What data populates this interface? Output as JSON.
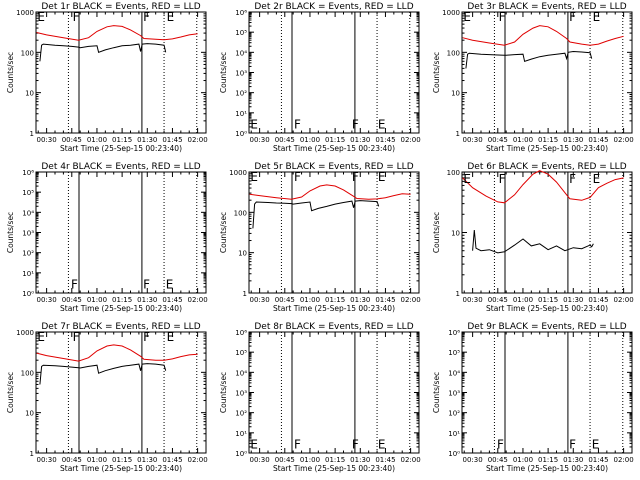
{
  "figure": {
    "xlabel": "Start Time (25-Sep-15 00:23:40)",
    "ylabel": "Counts/sec",
    "red_color": "#e00000",
    "black_color": "#000000",
    "x_ticks": [
      "00:30",
      "00:45",
      "01:00",
      "01:15",
      "01:30",
      "01:45",
      "02:00"
    ],
    "x_tick_minutes": [
      30,
      45,
      60,
      75,
      90,
      105,
      120
    ],
    "x_range_minutes": [
      23.67,
      125
    ],
    "solid_lines_minutes": [
      49.3,
      86.8
    ],
    "dotted_lines_minutes": [
      43,
      100,
      119.5
    ]
  },
  "chart_data": [
    {
      "type": "line",
      "title": "Det 1r BLACK = Events, RED = LLD",
      "ylog": true,
      "ylim": [
        1,
        1000
      ],
      "y_ticks": [
        "1",
        "10",
        "100",
        "1000"
      ],
      "markers": [
        {
          "text": "E",
          "x": 24.5,
          "y": 800
        },
        {
          "text": "F",
          "x": 45.5,
          "y": 800
        },
        {
          "text": "F",
          "x": 87.5,
          "y": 800
        },
        {
          "text": "E",
          "x": 101.5,
          "y": 800
        }
      ],
      "series": [
        {
          "color": "#e00000",
          "x": [
            24,
            30,
            40,
            49,
            55,
            60,
            66,
            70,
            75,
            80,
            86,
            88,
            95,
            100,
            105,
            110,
            115,
            120
          ],
          "y": [
            310,
            270,
            230,
            200,
            230,
            330,
            430,
            460,
            440,
            360,
            260,
            220,
            210,
            205,
            215,
            240,
            270,
            290
          ]
        },
        {
          "color": "#000000",
          "x": [
            26,
            27,
            28,
            35,
            40,
            45,
            49,
            50,
            55,
            60,
            61,
            65,
            70,
            75,
            80,
            85,
            86,
            87,
            90,
            95,
            100,
            101
          ],
          "y": [
            60,
            150,
            160,
            150,
            145,
            140,
            135,
            130,
            140,
            145,
            100,
            115,
            130,
            145,
            150,
            160,
            105,
            160,
            165,
            160,
            150,
            100
          ]
        }
      ]
    },
    {
      "type": "line",
      "title": "Det 2r BLACK = Events, RED = LLD",
      "ylog": true,
      "ylim": [
        1,
        1000000
      ],
      "y_ticks": [
        "10⁰",
        "10¹",
        "10²",
        "10³",
        "10⁴",
        "10⁵",
        "10⁶"
      ],
      "markers": [
        {
          "text": "E",
          "x": 24.5,
          "y": 3
        },
        {
          "text": "F",
          "x": 50.5,
          "y": 3
        },
        {
          "text": "F",
          "x": 85,
          "y": 3
        },
        {
          "text": "E",
          "x": 100.5,
          "y": 3
        }
      ],
      "series": []
    },
    {
      "type": "line",
      "title": "Det 3r BLACK = Events, RED = LLD",
      "ylog": true,
      "ylim": [
        1,
        1000
      ],
      "y_ticks": [
        "1",
        "10",
        "100",
        "1000"
      ],
      "markers": [
        {
          "text": "E",
          "x": 24.5,
          "y": 800
        },
        {
          "text": "F",
          "x": 45.5,
          "y": 800
        },
        {
          "text": "F",
          "x": 87.5,
          "y": 800
        },
        {
          "text": "E",
          "x": 101.5,
          "y": 800
        }
      ],
      "series": [
        {
          "color": "#e00000",
          "x": [
            24,
            30,
            40,
            49,
            55,
            60,
            66,
            70,
            75,
            80,
            86,
            88,
            95,
            100,
            105,
            110,
            115,
            120
          ],
          "y": [
            230,
            200,
            170,
            150,
            180,
            280,
            400,
            460,
            430,
            330,
            220,
            180,
            160,
            150,
            160,
            190,
            220,
            250
          ]
        },
        {
          "color": "#000000",
          "x": [
            26,
            27,
            28,
            35,
            40,
            45,
            49,
            50,
            55,
            60,
            61,
            65,
            70,
            75,
            80,
            85,
            86,
            87,
            90,
            95,
            100,
            101
          ],
          "y": [
            40,
            90,
            95,
            90,
            88,
            86,
            85,
            85,
            88,
            90,
            60,
            68,
            78,
            85,
            90,
            95,
            70,
            100,
            105,
            102,
            98,
            70
          ]
        }
      ]
    },
    {
      "type": "line",
      "title": "Det 4r BLACK = Events, RED = LLD",
      "ylog": true,
      "ylim": [
        1,
        1000000
      ],
      "y_ticks": [
        "10⁰",
        "10¹",
        "10²",
        "10³",
        "10⁴",
        "10⁵",
        "10⁶"
      ],
      "markers": [
        {
          "text": "F",
          "x": 44.5,
          "y": 3
        },
        {
          "text": "F",
          "x": 87.5,
          "y": 3
        },
        {
          "text": "E",
          "x": 101,
          "y": 3
        }
      ],
      "series": []
    },
    {
      "type": "line",
      "title": "Det 5r BLACK = Events, RED = LLD",
      "ylog": true,
      "ylim": [
        1,
        1000
      ],
      "y_ticks": [
        "1",
        "10",
        "100",
        "1000"
      ],
      "markers": [
        {
          "text": "E",
          "x": 24.5,
          "y": 800
        },
        {
          "text": "F",
          "x": 50.5,
          "y": 800
        },
        {
          "text": "F",
          "x": 85,
          "y": 800
        },
        {
          "text": "E",
          "x": 100.5,
          "y": 800
        }
      ],
      "series": [
        {
          "color": "#e00000",
          "x": [
            24,
            30,
            40,
            49,
            55,
            60,
            66,
            70,
            75,
            80,
            86,
            88,
            95,
            100,
            105,
            110,
            115,
            120
          ],
          "y": [
            280,
            260,
            230,
            210,
            240,
            340,
            450,
            480,
            450,
            360,
            250,
            220,
            210,
            215,
            230,
            260,
            290,
            280
          ]
        },
        {
          "color": "#000000",
          "x": [
            26,
            27,
            28,
            35,
            40,
            45,
            49,
            50,
            55,
            60,
            61,
            65,
            70,
            75,
            80,
            85,
            86,
            87,
            90,
            95,
            100,
            101
          ],
          "y": [
            40,
            160,
            180,
            175,
            170,
            168,
            165,
            160,
            170,
            180,
            110,
            125,
            140,
            160,
            175,
            190,
            130,
            190,
            195,
            190,
            185,
            140
          ]
        }
      ]
    },
    {
      "type": "line",
      "title": "Det 6r BLACK = Events, RED = LLD",
      "ylog": true,
      "ylim": [
        1,
        100
      ],
      "y_ticks": [
        "1",
        "10",
        "100"
      ],
      "markers": [
        {
          "text": "E",
          "x": 24.5,
          "y": 80
        },
        {
          "text": "F",
          "x": 45.5,
          "y": 80
        },
        {
          "text": "F",
          "x": 87.5,
          "y": 80
        },
        {
          "text": "E",
          "x": 101.5,
          "y": 80
        }
      ],
      "series": [
        {
          "color": "#e00000",
          "x": [
            24,
            30,
            38,
            45,
            49,
            55,
            60,
            66,
            70,
            75,
            80,
            86,
            88,
            95,
            100,
            105,
            110,
            115,
            120
          ],
          "y": [
            80,
            55,
            40,
            32,
            31,
            42,
            62,
            92,
            105,
            92,
            68,
            42,
            36,
            34,
            38,
            55,
            65,
            75,
            80
          ]
        },
        {
          "color": "#000000",
          "x": [
            30,
            31,
            32,
            35,
            40,
            45,
            49,
            55,
            60,
            65,
            70,
            75,
            80,
            85,
            90,
            95,
            100,
            101,
            102
          ],
          "y": [
            5,
            11,
            5.5,
            5,
            5.2,
            4.6,
            4.8,
            6.2,
            7.8,
            6,
            6.5,
            5.2,
            6,
            5,
            5.6,
            5.4,
            6.2,
            5.8,
            6.5
          ]
        }
      ]
    },
    {
      "type": "line",
      "title": "Det 7r BLACK = Events, RED = LLD",
      "ylog": true,
      "ylim": [
        1,
        1000
      ],
      "y_ticks": [
        "1",
        "10",
        "100",
        "1000"
      ],
      "markers": [
        {
          "text": "E",
          "x": 24.5,
          "y": 800
        },
        {
          "text": "F",
          "x": 45.5,
          "y": 800
        },
        {
          "text": "F",
          "x": 87.5,
          "y": 800
        },
        {
          "text": "E",
          "x": 101.5,
          "y": 800
        }
      ],
      "series": [
        {
          "color": "#e00000",
          "x": [
            24,
            30,
            40,
            49,
            55,
            60,
            66,
            70,
            75,
            80,
            86,
            88,
            95,
            100,
            105,
            110,
            115,
            120
          ],
          "y": [
            300,
            260,
            220,
            190,
            230,
            340,
            450,
            480,
            450,
            360,
            250,
            210,
            200,
            200,
            215,
            245,
            270,
            280
          ]
        },
        {
          "color": "#000000",
          "x": [
            26,
            27,
            28,
            35,
            40,
            45,
            49,
            50,
            55,
            60,
            61,
            65,
            70,
            75,
            80,
            85,
            86,
            87,
            90,
            95,
            100,
            101
          ],
          "y": [
            50,
            140,
            150,
            145,
            140,
            135,
            130,
            128,
            140,
            150,
            95,
            110,
            125,
            140,
            150,
            160,
            110,
            160,
            165,
            160,
            150,
            110
          ]
        }
      ]
    },
    {
      "type": "line",
      "title": "Det 8r BLACK = Events, RED = LLD",
      "ylog": true,
      "ylim": [
        1,
        1000000
      ],
      "y_ticks": [
        "10⁰",
        "10¹",
        "10²",
        "10³",
        "10⁴",
        "10⁵",
        "10⁶"
      ],
      "markers": [
        {
          "text": "E",
          "x": 24.5,
          "y": 3
        },
        {
          "text": "F",
          "x": 50.5,
          "y": 3
        },
        {
          "text": "F",
          "x": 85,
          "y": 3
        },
        {
          "text": "E",
          "x": 100.5,
          "y": 3
        }
      ],
      "series": []
    },
    {
      "type": "line",
      "title": "Det 9r BLACK = Events, RED = LLD",
      "ylog": true,
      "ylim": [
        1,
        1000000
      ],
      "y_ticks": [
        "10⁰",
        "10¹",
        "10²",
        "10³",
        "10⁴",
        "10⁵",
        "10⁶"
      ],
      "markers": [
        {
          "text": "F",
          "x": 44.5,
          "y": 3
        },
        {
          "text": "F",
          "x": 87.5,
          "y": 3
        },
        {
          "text": "E",
          "x": 101,
          "y": 3
        }
      ],
      "series": []
    }
  ]
}
